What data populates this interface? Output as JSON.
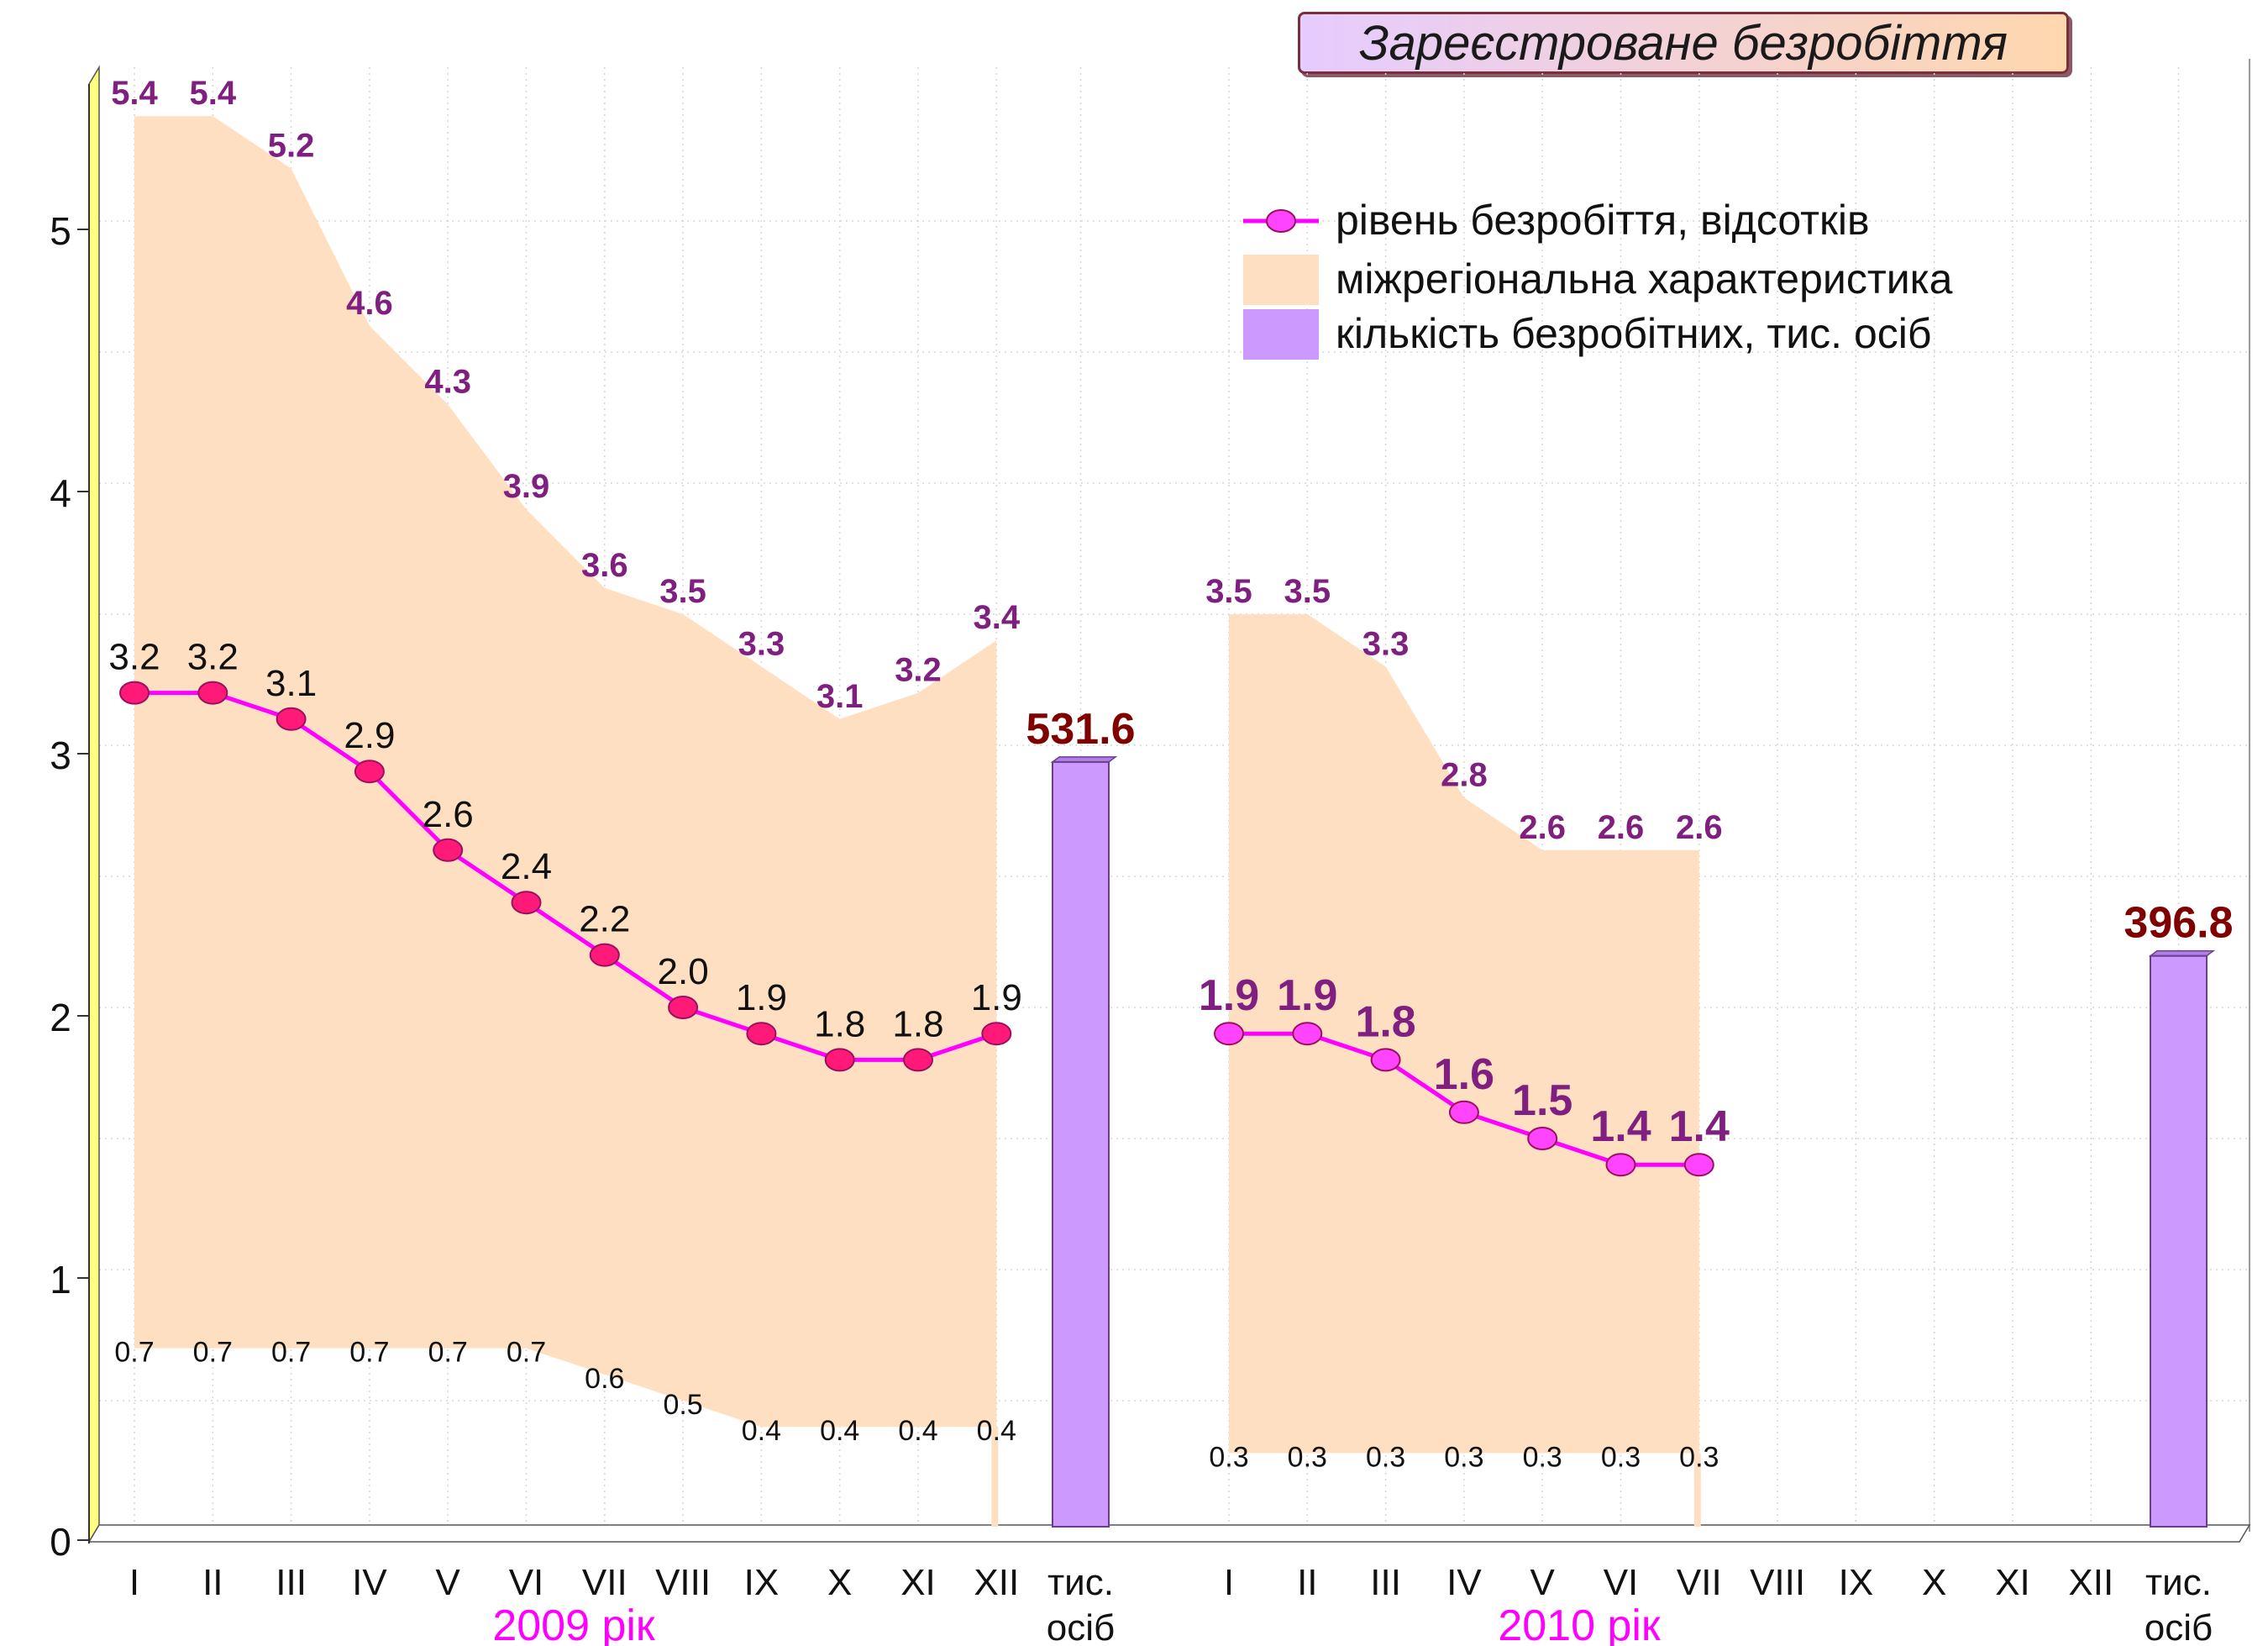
{
  "title": "Зареєстроване безробіття",
  "colors": {
    "line": "#ff00ff",
    "marker_2009": "#ff1a7a",
    "marker_2010": "#ff44ff",
    "range_fill": "#ffdfc2",
    "bar_fill": "#cc99ff",
    "bar_stroke": "#6a3d8f",
    "max_label": "#7f1f7f",
    "bar_label": "#800000",
    "group_label": "#ff00ff",
    "axis_band": "#ffff80"
  },
  "chart_data": {
    "type": "line",
    "y_ticks": [
      "0",
      "1",
      "2",
      "3",
      "4",
      "5"
    ],
    "ylim": [
      0,
      5.45
    ],
    "grid": true,
    "legend": {
      "position": "top-right",
      "items": [
        {
          "kind": "line",
          "label": "рівень безробіття, відсотків"
        },
        {
          "kind": "area",
          "label": "міжрегіональна характеристика"
        },
        {
          "kind": "bar",
          "label": "кількість безробітних, тис. осіб"
        }
      ]
    },
    "groups": [
      {
        "label": "2009 рік",
        "categories": [
          "I",
          "II",
          "III",
          "IV",
          "V",
          "VI",
          "VII",
          "VIII",
          "IX",
          "X",
          "XI",
          "XII"
        ],
        "level": [
          3.2,
          3.2,
          3.1,
          2.9,
          2.6,
          2.4,
          2.2,
          2.0,
          1.9,
          1.8,
          1.8,
          1.9
        ],
        "level_labels": [
          "3.2",
          "3.2",
          "3.1",
          "2.9",
          "2.6",
          "2.4",
          "2.2",
          "2.0",
          "1.9",
          "1.8",
          "1.8",
          "1.9"
        ],
        "range_max": [
          5.4,
          5.4,
          5.2,
          4.6,
          4.3,
          3.9,
          3.6,
          3.5,
          3.3,
          3.1,
          3.2,
          3.4
        ],
        "range_max_labels": [
          "5.4",
          "5.4",
          "5.2",
          "4.6",
          "4.3",
          "3.9",
          "3.6",
          "3.5",
          "3.3",
          "3.1",
          "3.2",
          "3.4"
        ],
        "range_min": [
          0.7,
          0.7,
          0.7,
          0.7,
          0.7,
          0.7,
          0.6,
          0.5,
          0.4,
          0.4,
          0.4,
          0.4
        ],
        "range_min_labels": [
          "0.7",
          "0.7",
          "0.7",
          "0.7",
          "0.7",
          "0.7",
          "0.6",
          "0.5",
          "0.4",
          "0.4",
          "0.4",
          "0.4"
        ],
        "bar_category": [
          "тис.",
          "осіб"
        ],
        "bar_value": 531.6,
        "bar_label": "531.6"
      },
      {
        "label": "2010 рік",
        "categories": [
          "I",
          "II",
          "III",
          "IV",
          "V",
          "VI",
          "VII",
          "VIII",
          "IX",
          "X",
          "XI",
          "XII"
        ],
        "level": [
          1.9,
          1.9,
          1.8,
          1.6,
          1.5,
          1.4,
          1.4
        ],
        "level_labels": [
          "1.9",
          "1.9",
          "1.8",
          "1.6",
          "1.5",
          "1.4",
          "1.4"
        ],
        "range_max": [
          3.5,
          3.5,
          3.3,
          2.8,
          2.6,
          2.6,
          2.6
        ],
        "range_max_labels": [
          "3.5",
          "3.5",
          "3.3",
          "2.8",
          "2.6",
          "2.6",
          "2.6"
        ],
        "range_min": [
          0.3,
          0.3,
          0.3,
          0.3,
          0.3,
          0.3,
          0.3
        ],
        "range_min_labels": [
          "0.3",
          "0.3",
          "0.3",
          "0.3",
          "0.3",
          "0.3",
          "0.3"
        ],
        "bar_category": [
          "тис.",
          "осіб"
        ],
        "bar_value": 396.8,
        "bar_label": "396.8"
      }
    ]
  }
}
